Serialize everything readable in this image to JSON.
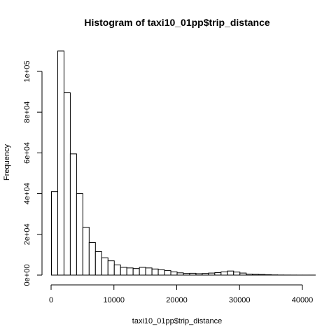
{
  "chart_data": {
    "type": "bar",
    "title": "Histogram of taxi10_01pp$trip_distance",
    "xlabel": "taxi10_01pp$trip_distance",
    "ylabel": "Frequency",
    "bin_width": 1000,
    "bin_starts": [
      0,
      1000,
      2000,
      3000,
      4000,
      5000,
      6000,
      7000,
      8000,
      9000,
      10000,
      11000,
      12000,
      13000,
      14000,
      15000,
      16000,
      17000,
      18000,
      19000,
      20000,
      21000,
      22000,
      23000,
      24000,
      25000,
      26000,
      27000,
      28000,
      29000,
      30000,
      31000,
      32000,
      33000,
      34000,
      35000,
      36000,
      37000,
      38000,
      39000,
      40000,
      41000
    ],
    "values": [
      41000,
      110000,
      89500,
      59500,
      40000,
      23500,
      16000,
      11500,
      8500,
      7000,
      5000,
      3800,
      3500,
      3200,
      3800,
      3500,
      3000,
      2600,
      2200,
      1600,
      1100,
      800,
      900,
      700,
      800,
      1000,
      1200,
      1600,
      2000,
      1500,
      1000,
      500,
      400,
      300,
      200,
      100,
      50,
      30,
      20,
      10,
      10,
      10
    ],
    "xlim": [
      0,
      41000
    ],
    "ylim": [
      0,
      110000
    ],
    "xticks": [
      0,
      10000,
      20000,
      30000,
      40000
    ],
    "xtick_labels": [
      "0",
      "10000",
      "20000",
      "30000",
      "40000"
    ],
    "yticks": [
      0,
      20000,
      40000,
      60000,
      80000,
      100000
    ],
    "ytick_labels": [
      "0e+00",
      "2e+04",
      "4e+04",
      "6e+04",
      "8e+04",
      "1e+05"
    ],
    "colors": {
      "bar_fill": "#ffffff",
      "bar_stroke": "#000000"
    }
  }
}
